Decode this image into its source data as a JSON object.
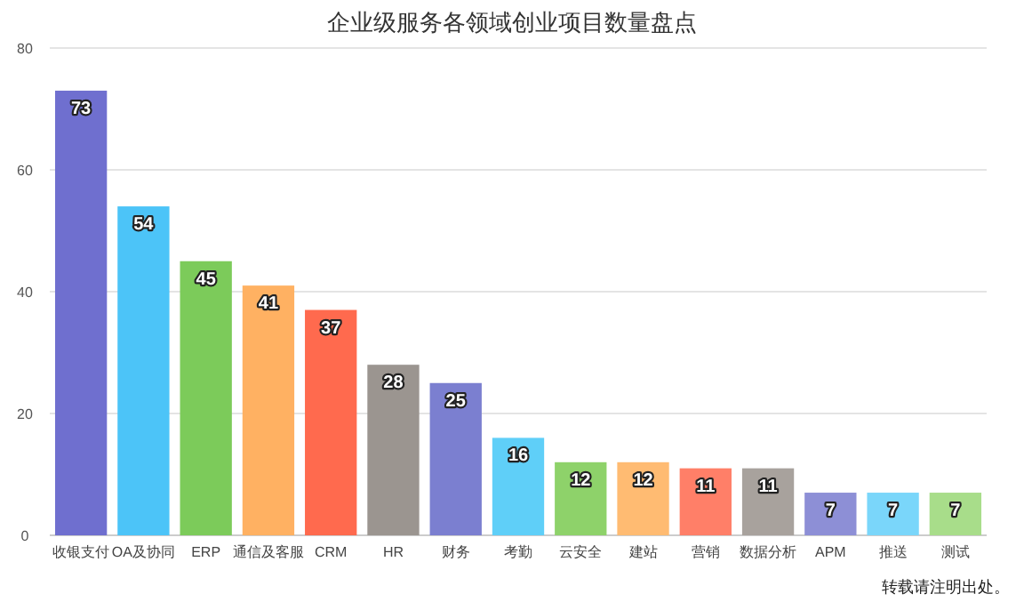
{
  "chart_data": {
    "type": "bar",
    "title": "企业级服务各领域创业项目数量盘点",
    "categories": [
      "收银支付",
      "OA及协同",
      "ERP",
      "通信及客服",
      "CRM",
      "HR",
      "财务",
      "考勤",
      "云安全",
      "建站",
      "营销",
      "数据分析",
      "APM",
      "推送",
      "测试"
    ],
    "values": [
      73,
      54,
      45,
      41,
      37,
      28,
      25,
      16,
      12,
      12,
      11,
      11,
      7,
      7,
      7
    ],
    "colors": [
      "#6f6fcf",
      "#4cc4f8",
      "#7ccb5a",
      "#ffb162",
      "#ff6a4e",
      "#9b9590",
      "#7b7fd0",
      "#5fcff8",
      "#8ed26a",
      "#ffbb72",
      "#ff7f68",
      "#a8a29d",
      "#8d8fd6",
      "#7ad6fa",
      "#a8dd8a"
    ],
    "ylim": [
      0,
      80
    ],
    "yticks": [
      0,
      20,
      40,
      60,
      80
    ],
    "grid": "y",
    "data_labels": true,
    "annotations": [
      "转载请注明出处。"
    ]
  }
}
